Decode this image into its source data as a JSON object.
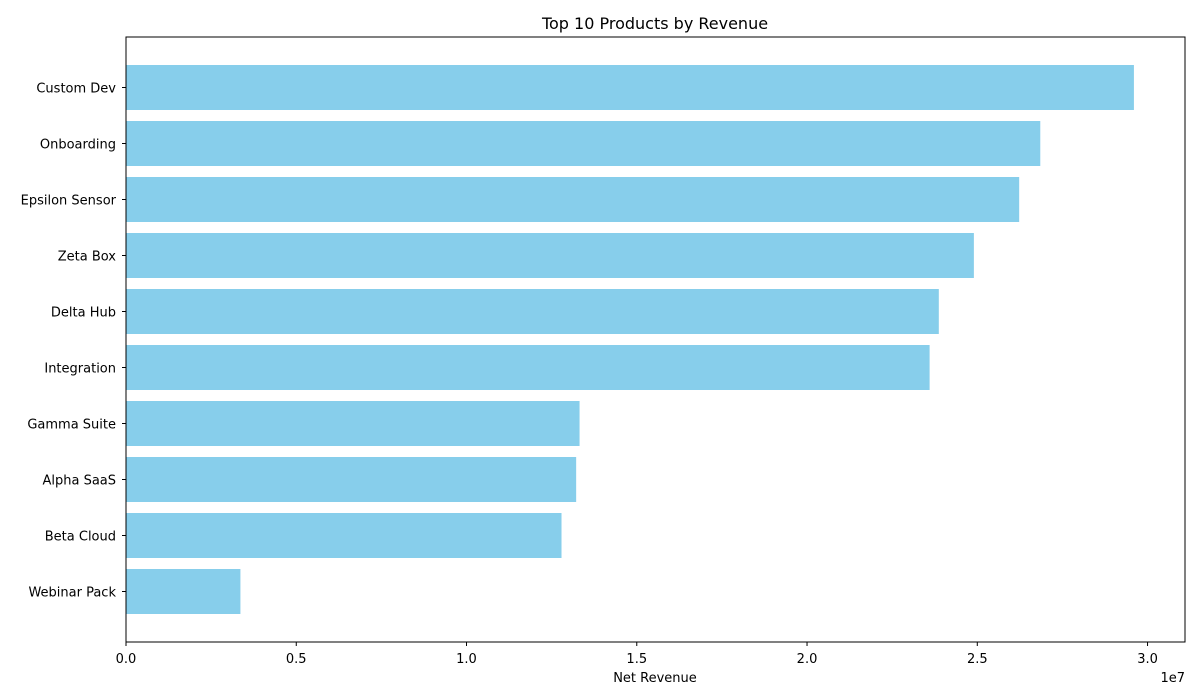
{
  "chart_data": {
    "type": "bar",
    "orientation": "horizontal",
    "title": "Top 10 Products by Revenue",
    "xlabel": "Net Revenue",
    "ylabel": "",
    "axis_offset_label": "1e7",
    "categories": [
      "Custom Dev",
      "Onboarding",
      "Epsilon Sensor",
      "Zeta Box",
      "Delta Hub",
      "Integration",
      "Gamma Suite",
      "Alpha SaaS",
      "Beta Cloud",
      "Webinar Pack"
    ],
    "values": [
      29600000,
      26850000,
      26230000,
      24900000,
      23870000,
      23600000,
      13320000,
      13220000,
      12790000,
      3360000
    ],
    "xlim": [
      0,
      31100000
    ],
    "xticks": [
      0,
      5000000,
      10000000,
      15000000,
      20000000,
      25000000,
      30000000
    ],
    "xtick_labels": [
      "0.0",
      "0.5",
      "1.0",
      "1.5",
      "2.0",
      "2.5",
      "3.0"
    ],
    "bar_color": "#87ceeb",
    "grid": false,
    "legend": "none"
  }
}
